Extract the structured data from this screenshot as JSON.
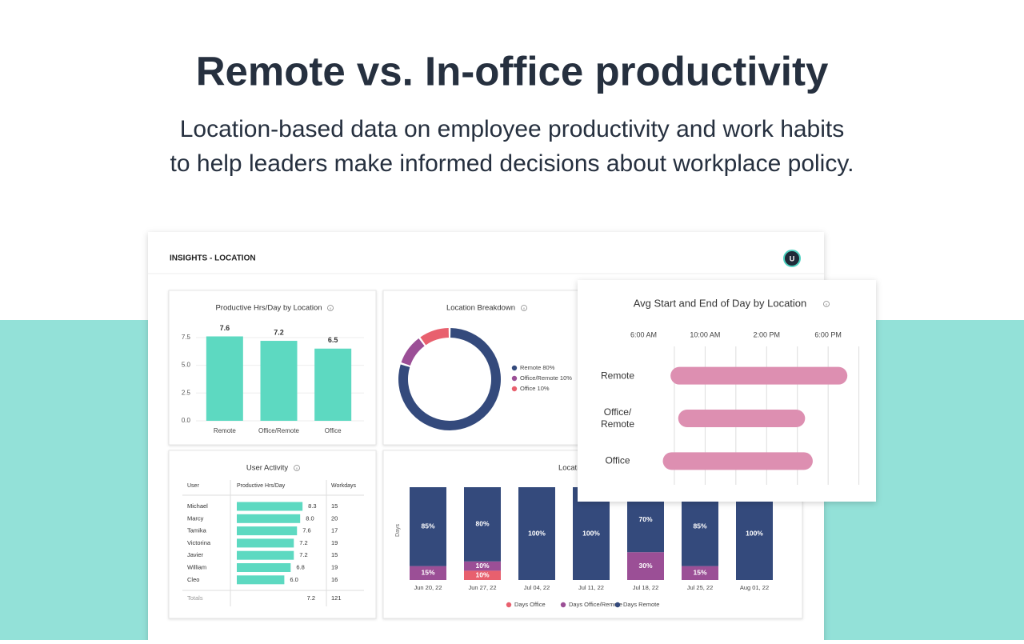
{
  "header": {
    "title": "Remote vs. In-office productivity",
    "subtitle_lines": [
      "Location-based data on employee productivity and work habits",
      "to help leaders make informed decisions about workplace policy."
    ]
  },
  "dashboard": {
    "title": "INSIGHTS - LOCATION",
    "avatar": "U"
  },
  "chart_data": [
    {
      "type": "bar",
      "title": "Productive Hrs/Day by Location",
      "categories": [
        "Remote",
        "Office/Remote",
        "Office"
      ],
      "values": [
        7.6,
        7.2,
        6.5
      ],
      "color": "#5dd9c1",
      "ylim": [
        0,
        8.5
      ],
      "yticks": [
        {
          "value": 0,
          "label": "0.0"
        },
        2.5,
        {
          "value": 5,
          "label": "5.0"
        },
        7.5
      ],
      "grid": true
    },
    {
      "type": "donut",
      "title": "Location Breakdown",
      "categories": [
        "Remote",
        "Office/Remote",
        "Office"
      ],
      "values": [
        80,
        10,
        10
      ],
      "value_labels": [
        "80%",
        "10%",
        "10%"
      ],
      "colors": [
        "#344a7c",
        "#9b4f96",
        "#e8606e"
      ]
    },
    {
      "type": "stacked-bar",
      "title": "Location Distribution",
      "y_label": "Days",
      "categories": [
        "Jun 20, 22",
        "Jun 27, 22",
        "Jul 04, 22",
        "Jul 11, 22",
        "Jul 18, 22",
        "Jul 25, 22",
        "Aug 01, 22"
      ],
      "ylim": [
        0,
        100
      ],
      "series": [
        {
          "name": "Days Office",
          "color": "#e8606e",
          "values": [
            0,
            10,
            0,
            0,
            0,
            0,
            0
          ],
          "value_labels": [
            null,
            "10%",
            null,
            null,
            null,
            null,
            null
          ]
        },
        {
          "name": "Days Office/Remote",
          "color": "#9b4f96",
          "values": [
            15,
            10,
            0,
            0,
            30,
            15,
            0
          ],
          "value_labels": [
            "15%",
            "10%",
            null,
            null,
            "30%",
            "15%",
            null
          ]
        },
        {
          "name": "Days Remote",
          "color": "#344a7c",
          "values": [
            85,
            80,
            100,
            100,
            70,
            85,
            100
          ],
          "value_labels": [
            "85%",
            "80%",
            "100%",
            "100%",
            "70%",
            "85%",
            "100%"
          ]
        }
      ]
    },
    {
      "type": "range-bar",
      "title": "Avg Start and End of Day by Location",
      "categories": [
        "Remote",
        "Office/\nRemote",
        "Office"
      ],
      "start": [
        7.75,
        8.25,
        7.25
      ],
      "end": [
        19.25,
        16.5,
        17
      ],
      "color": "#dd8fb1",
      "xlim": [
        6,
        20.8
      ],
      "xticks": [
        {
          "value": 6,
          "label": "6:00 AM"
        },
        {
          "value": 10,
          "label": "10:00 AM"
        },
        {
          "value": 14,
          "label": "2:00 PM"
        },
        {
          "value": 18,
          "label": "6:00 PM"
        }
      ],
      "xgrid": [
        8,
        10,
        12,
        14,
        16,
        18,
        20
      ]
    }
  ],
  "user_activity": {
    "title": "User Activity",
    "columns": [
      "User",
      "Productive Hrs/Day",
      "Workdays"
    ],
    "users": [
      "Michael",
      "Marcy",
      "Tamika",
      "Victorina",
      "Javier",
      "William",
      "Cleo"
    ],
    "values": [
      8.3,
      8,
      7.6,
      7.2,
      7.2,
      6.8,
      6
    ],
    "value_labels": [
      "8.3",
      "8.0",
      "7.6",
      "7.2",
      "7.2",
      "6.8",
      "6.0"
    ],
    "workdays": [
      15,
      20,
      17,
      19,
      15,
      19,
      16
    ],
    "color": "#5dd9c1",
    "totals": {
      "label": "Totals",
      "hours": 7.2,
      "workdays": 121
    }
  }
}
